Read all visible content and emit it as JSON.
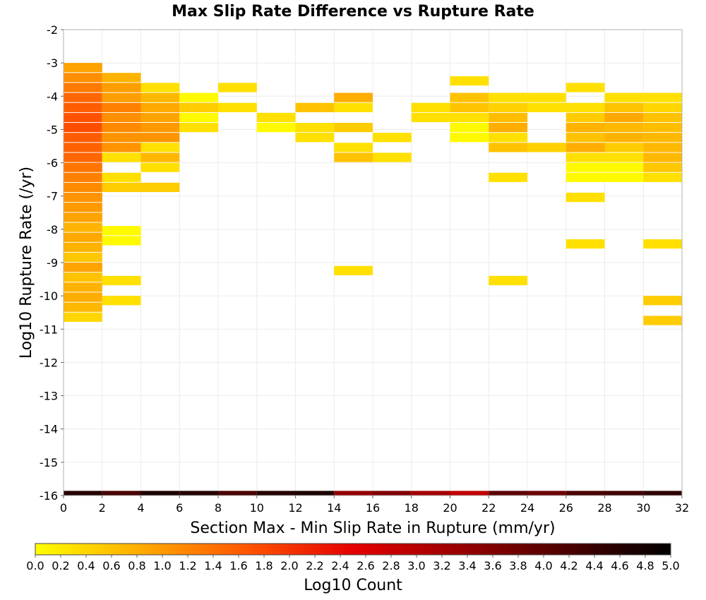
{
  "chart_data": {
    "type": "heatmap",
    "title": "Max Slip Rate Difference vs Rupture Rate",
    "xlabel": "Section Max - Min Slip Rate in Rupture (mm/yr)",
    "ylabel": "Log10 Rupture Rate (/yr)",
    "xlim": [
      0,
      32
    ],
    "ylim": [
      -16,
      -2
    ],
    "x_bin_width": 2,
    "y_bin_height": 0.28,
    "x_ticks": [
      "0",
      "2",
      "4",
      "6",
      "8",
      "10",
      "12",
      "14",
      "16",
      "18",
      "20",
      "22",
      "24",
      "26",
      "28",
      "30",
      "32"
    ],
    "y_ticks": [
      "-2",
      "-3",
      "-4",
      "-5",
      "-6",
      "-7",
      "-8",
      "-9",
      "-10",
      "-11",
      "-12",
      "-13",
      "-14",
      "-15",
      "-16"
    ],
    "colorbar": {
      "label": "Log10 Count",
      "min": 0.0,
      "max": 5.0,
      "ticks": [
        "0.0",
        "0.2",
        "0.4",
        "0.6",
        "0.8",
        "1.0",
        "1.2",
        "1.4",
        "1.6",
        "1.8",
        "2.0",
        "2.2",
        "2.4",
        "2.6",
        "2.8",
        "3.0",
        "3.2",
        "3.4",
        "3.6",
        "3.8",
        "4.0",
        "4.2",
        "4.4",
        "4.6",
        "4.8",
        "5.0"
      ],
      "colors": [
        "#ffff00",
        "#ffaa00",
        "#ff5500",
        "#e60000",
        "#990000",
        "#4d0000",
        "#000000"
      ]
    },
    "cells": [
      {
        "x": 0,
        "y": -3.0,
        "v": 0.9
      },
      {
        "x": 0,
        "y": -3.3,
        "v": 1.1
      },
      {
        "x": 0,
        "y": -3.6,
        "v": 1.3
      },
      {
        "x": 0,
        "y": -3.9,
        "v": 1.5
      },
      {
        "x": 0,
        "y": -4.2,
        "v": 1.6
      },
      {
        "x": 0,
        "y": -4.5,
        "v": 1.7
      },
      {
        "x": 0,
        "y": -4.8,
        "v": 1.75
      },
      {
        "x": 0,
        "y": -5.1,
        "v": 1.6
      },
      {
        "x": 0,
        "y": -5.4,
        "v": 1.55
      },
      {
        "x": 0,
        "y": -5.7,
        "v": 1.5
      },
      {
        "x": 0,
        "y": -6.0,
        "v": 1.35
      },
      {
        "x": 0,
        "y": -6.3,
        "v": 1.25
      },
      {
        "x": 0,
        "y": -6.6,
        "v": 1.15
      },
      {
        "x": 0,
        "y": -6.9,
        "v": 1.05
      },
      {
        "x": 0,
        "y": -7.2,
        "v": 1.0
      },
      {
        "x": 0,
        "y": -7.5,
        "v": 0.9
      },
      {
        "x": 0,
        "y": -7.8,
        "v": 0.75
      },
      {
        "x": 0,
        "y": -8.1,
        "v": 0.85
      },
      {
        "x": 0,
        "y": -8.4,
        "v": 0.75
      },
      {
        "x": 0,
        "y": -8.7,
        "v": 0.55
      },
      {
        "x": 0,
        "y": -9.0,
        "v": 0.9
      },
      {
        "x": 0,
        "y": -9.3,
        "v": 0.6
      },
      {
        "x": 0,
        "y": -9.6,
        "v": 0.75
      },
      {
        "x": 0,
        "y": -9.9,
        "v": 0.8
      },
      {
        "x": 0,
        "y": -10.2,
        "v": 0.7
      },
      {
        "x": 0,
        "y": -10.5,
        "v": 0.4
      },
      {
        "x": 2,
        "y": -3.3,
        "v": 0.75
      },
      {
        "x": 2,
        "y": -3.6,
        "v": 0.95
      },
      {
        "x": 2,
        "y": -3.9,
        "v": 0.95
      },
      {
        "x": 2,
        "y": -4.2,
        "v": 1.25
      },
      {
        "x": 2,
        "y": -4.5,
        "v": 1.1
      },
      {
        "x": 2,
        "y": -4.8,
        "v": 1.15
      },
      {
        "x": 2,
        "y": -5.1,
        "v": 1.05
      },
      {
        "x": 2,
        "y": -5.4,
        "v": 1.05
      },
      {
        "x": 2,
        "y": -5.7,
        "v": 0.3
      },
      {
        "x": 2,
        "y": -6.3,
        "v": 0.3
      },
      {
        "x": 2,
        "y": -6.6,
        "v": 0.5
      },
      {
        "x": 2,
        "y": -7.9,
        "v": 0.05
      },
      {
        "x": 2,
        "y": -8.2,
        "v": 0.05
      },
      {
        "x": 2,
        "y": -9.4,
        "v": 0.3
      },
      {
        "x": 2,
        "y": -10.0,
        "v": 0.3
      },
      {
        "x": 4,
        "y": -3.6,
        "v": 0.3
      },
      {
        "x": 4,
        "y": -3.9,
        "v": 0.7
      },
      {
        "x": 4,
        "y": -4.2,
        "v": 0.85
      },
      {
        "x": 4,
        "y": -4.5,
        "v": 0.9
      },
      {
        "x": 4,
        "y": -4.8,
        "v": 1.0
      },
      {
        "x": 4,
        "y": -5.1,
        "v": 1.05
      },
      {
        "x": 4,
        "y": -5.4,
        "v": 0.3
      },
      {
        "x": 4,
        "y": -5.7,
        "v": 0.7
      },
      {
        "x": 4,
        "y": -6.0,
        "v": 0.3
      },
      {
        "x": 4,
        "y": -6.6,
        "v": 0.5
      },
      {
        "x": 6,
        "y": -3.9,
        "v": 0.05
      },
      {
        "x": 6,
        "y": -4.2,
        "v": 0.5
      },
      {
        "x": 6,
        "y": -4.5,
        "v": 0.05
      },
      {
        "x": 6,
        "y": -4.8,
        "v": 0.3
      },
      {
        "x": 8,
        "y": -3.6,
        "v": 0.3
      },
      {
        "x": 8,
        "y": -4.2,
        "v": 0.3
      },
      {
        "x": 10,
        "y": -4.5,
        "v": 0.3
      },
      {
        "x": 10,
        "y": -4.8,
        "v": 0.05
      },
      {
        "x": 12,
        "y": -4.2,
        "v": 0.6
      },
      {
        "x": 12,
        "y": -4.8,
        "v": 0.3
      },
      {
        "x": 12,
        "y": -5.1,
        "v": 0.3
      },
      {
        "x": 14,
        "y": -3.9,
        "v": 0.8
      },
      {
        "x": 14,
        "y": -4.2,
        "v": 0.3
      },
      {
        "x": 14,
        "y": -4.8,
        "v": 0.5
      },
      {
        "x": 14,
        "y": -5.4,
        "v": 0.3
      },
      {
        "x": 14,
        "y": -5.7,
        "v": 0.6
      },
      {
        "x": 14,
        "y": -9.1,
        "v": 0.3
      },
      {
        "x": 16,
        "y": -5.1,
        "v": 0.3
      },
      {
        "x": 16,
        "y": -5.7,
        "v": 0.3
      },
      {
        "x": 18,
        "y": -4.2,
        "v": 0.3
      },
      {
        "x": 18,
        "y": -4.5,
        "v": 0.3
      },
      {
        "x": 20,
        "y": -3.4,
        "v": 0.3
      },
      {
        "x": 20,
        "y": -3.9,
        "v": 0.6
      },
      {
        "x": 20,
        "y": -4.2,
        "v": 0.6
      },
      {
        "x": 20,
        "y": -4.5,
        "v": 0.3
      },
      {
        "x": 20,
        "y": -4.8,
        "v": 0.05
      },
      {
        "x": 20,
        "y": -5.1,
        "v": 0.05
      },
      {
        "x": 22,
        "y": -3.9,
        "v": 0.3
      },
      {
        "x": 22,
        "y": -4.2,
        "v": 0.45
      },
      {
        "x": 22,
        "y": -4.5,
        "v": 0.65
      },
      {
        "x": 22,
        "y": -4.8,
        "v": 0.8
      },
      {
        "x": 22,
        "y": -5.1,
        "v": 0.3
      },
      {
        "x": 22,
        "y": -5.4,
        "v": 0.6
      },
      {
        "x": 22,
        "y": -6.3,
        "v": 0.3
      },
      {
        "x": 22,
        "y": -9.4,
        "v": 0.3
      },
      {
        "x": 24,
        "y": -3.9,
        "v": 0.3
      },
      {
        "x": 24,
        "y": -4.2,
        "v": 0.3
      },
      {
        "x": 24,
        "y": -5.4,
        "v": 0.45
      },
      {
        "x": 26,
        "y": -3.6,
        "v": 0.3
      },
      {
        "x": 26,
        "y": -4.2,
        "v": 0.3
      },
      {
        "x": 26,
        "y": -4.5,
        "v": 0.5
      },
      {
        "x": 26,
        "y": -4.8,
        "v": 0.75
      },
      {
        "x": 26,
        "y": -5.1,
        "v": 0.6
      },
      {
        "x": 26,
        "y": -5.4,
        "v": 0.8
      },
      {
        "x": 26,
        "y": -5.7,
        "v": 0.3
      },
      {
        "x": 26,
        "y": -6.0,
        "v": 0.05
      },
      {
        "x": 26,
        "y": -6.3,
        "v": 0.05
      },
      {
        "x": 26,
        "y": -6.9,
        "v": 0.3
      },
      {
        "x": 26,
        "y": -8.3,
        "v": 0.3
      },
      {
        "x": 28,
        "y": -3.9,
        "v": 0.3
      },
      {
        "x": 28,
        "y": -4.2,
        "v": 0.6
      },
      {
        "x": 28,
        "y": -4.5,
        "v": 0.85
      },
      {
        "x": 28,
        "y": -4.8,
        "v": 0.7
      },
      {
        "x": 28,
        "y": -5.1,
        "v": 0.75
      },
      {
        "x": 28,
        "y": -5.4,
        "v": 0.5
      },
      {
        "x": 28,
        "y": -5.7,
        "v": 0.3
      },
      {
        "x": 28,
        "y": -6.0,
        "v": 0.05
      },
      {
        "x": 28,
        "y": -6.3,
        "v": 0.05
      },
      {
        "x": 30,
        "y": -3.9,
        "v": 0.3
      },
      {
        "x": 30,
        "y": -4.2,
        "v": 0.4
      },
      {
        "x": 30,
        "y": -4.5,
        "v": 0.6
      },
      {
        "x": 30,
        "y": -4.8,
        "v": 0.65
      },
      {
        "x": 30,
        "y": -5.1,
        "v": 0.7
      },
      {
        "x": 30,
        "y": -5.4,
        "v": 0.7
      },
      {
        "x": 30,
        "y": -5.7,
        "v": 0.7
      },
      {
        "x": 30,
        "y": -6.0,
        "v": 0.55
      },
      {
        "x": 30,
        "y": -6.3,
        "v": 0.3
      },
      {
        "x": 30,
        "y": -8.3,
        "v": 0.3
      },
      {
        "x": 30,
        "y": -10.0,
        "v": 0.5
      },
      {
        "x": 30,
        "y": -10.6,
        "v": 0.5
      }
    ],
    "bottom_row": {
      "y": -16.0,
      "values": [
        4.6,
        4.2,
        4.7,
        4.6,
        4.2,
        4.6,
        4.7,
        3.4,
        3.6,
        3.2,
        2.9,
        4.0,
        3.8,
        4.2,
        4.3,
        4.5
      ]
    }
  }
}
